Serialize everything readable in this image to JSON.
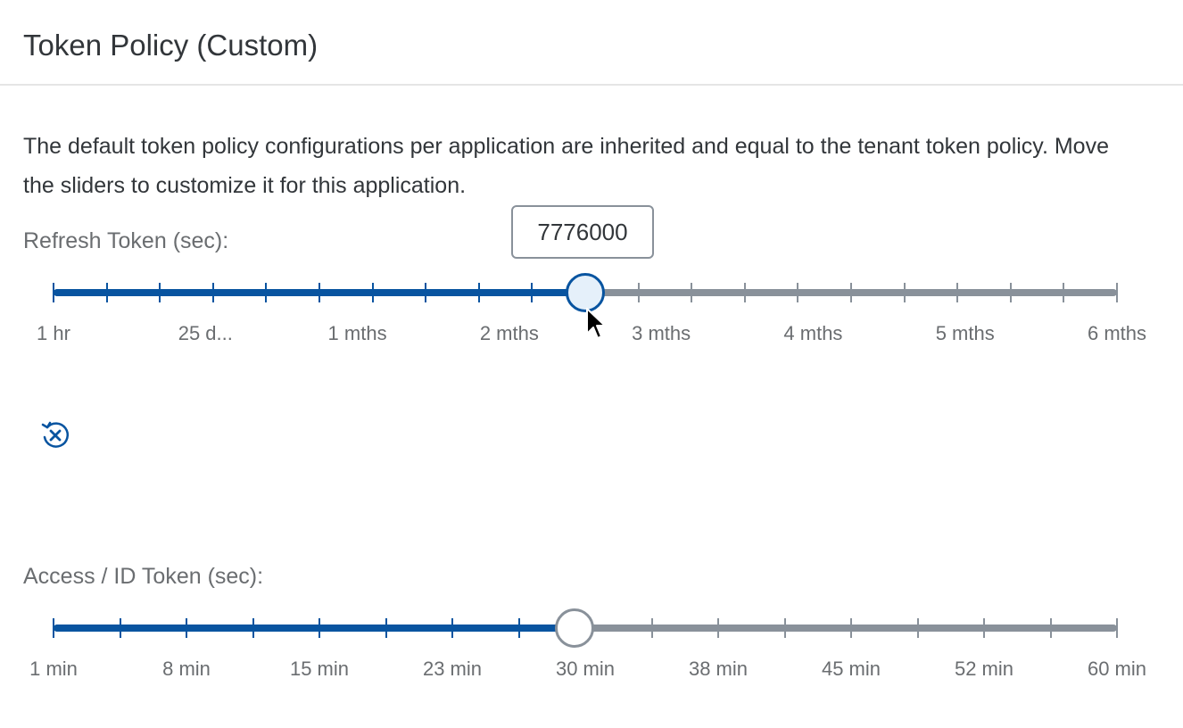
{
  "header": {
    "title": "Token Policy (Custom)"
  },
  "description": "The default token policy configurations per application are inherited and equal to the tenant token policy. Move the sliders to customize it for this application.",
  "refresh_slider": {
    "label": "Refresh Token (sec):",
    "value_text": "7776000",
    "value_fraction": 0.5,
    "tick_count": 21,
    "tick_labels": [
      "1 hr",
      "25 d...",
      "1 mths",
      "2 mths",
      "3 mths",
      "4 mths",
      "5 mths",
      "6 mths"
    ]
  },
  "access_slider": {
    "label": "Access / ID Token (sec):",
    "value_fraction": 0.49,
    "tick_count": 17,
    "tick_labels": [
      "1 min",
      "8 min",
      "15 min",
      "23 min",
      "30 min",
      "38 min",
      "45 min",
      "52 min",
      "60 min"
    ]
  },
  "reset_icon": "reset-icon",
  "colors": {
    "accent": "#0854a0",
    "track": "#89919a",
    "text": "#32363a",
    "muted": "#6a6d70"
  }
}
